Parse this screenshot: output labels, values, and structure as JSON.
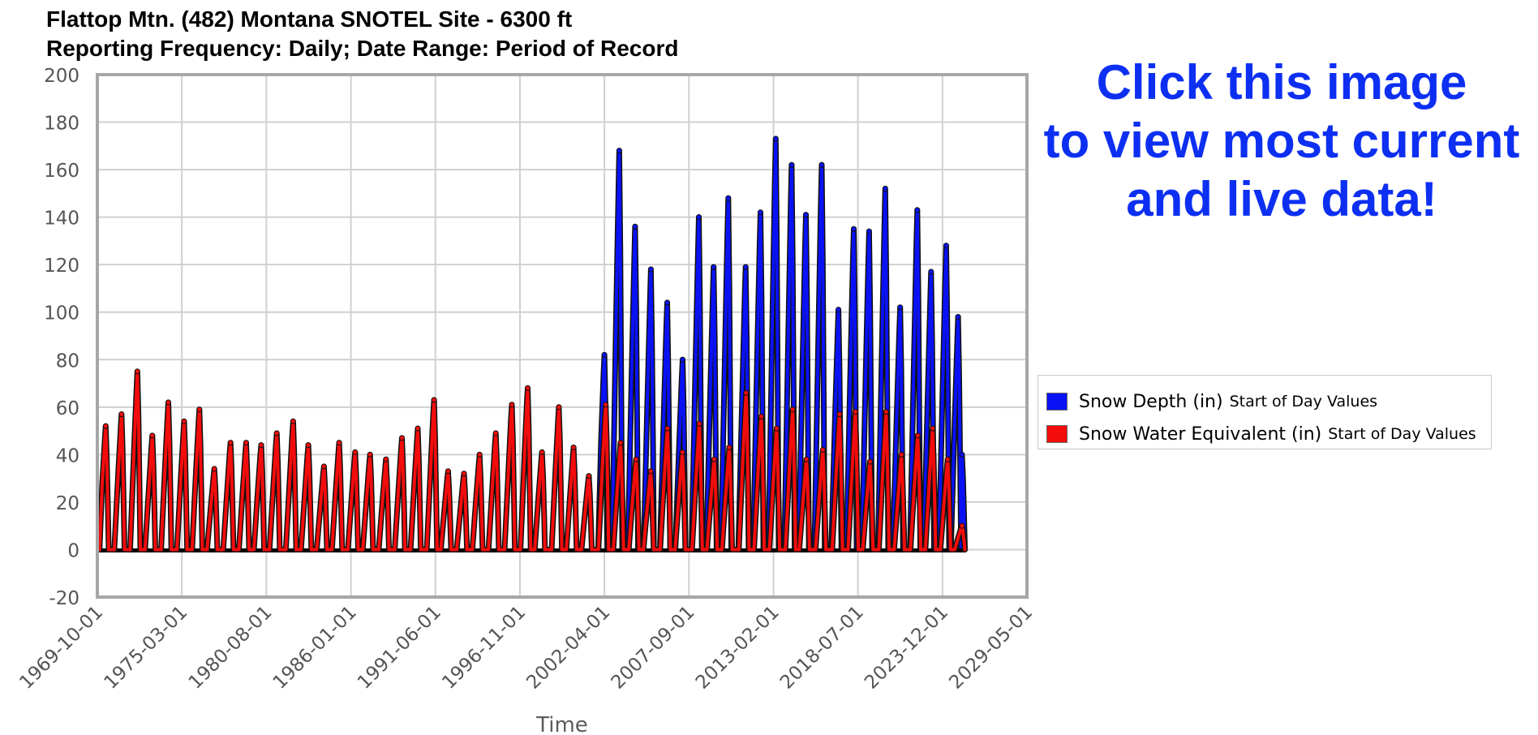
{
  "chart_data": {
    "type": "line",
    "title": [
      "Flattop Mtn. (482) Montana SNOTEL Site - 6300 ft",
      "Reporting Frequency: Daily; Date Range: Period of Record"
    ],
    "xlabel": "Time",
    "ylabel": "",
    "x_tick_labels": [
      "1969-10-01",
      "1975-03-01",
      "1980-08-01",
      "1986-01-01",
      "1991-06-01",
      "1996-11-01",
      "2002-04-01",
      "2007-09-01",
      "2013-02-01",
      "2018-07-01",
      "2023-12-01",
      "2029-05-01"
    ],
    "xlim": [
      "1969-10-01",
      "2029-05-01"
    ],
    "y_ticks": [
      200,
      180,
      160,
      140,
      120,
      100,
      80,
      60,
      40,
      20,
      0,
      -20
    ],
    "ylim": [
      -20,
      200
    ],
    "grid": true,
    "legend_position": "right",
    "series": [
      {
        "name": "Snow Depth (in)",
        "name_suffix": "Start of Day Values",
        "color": "#0a12f5",
        "annual_peaks": [
          [
            "2002-04-01",
            82
          ],
          [
            "2003-03-15",
            168
          ],
          [
            "2004-03-20",
            136
          ],
          [
            "2005-03-25",
            118
          ],
          [
            "2006-04-10",
            104
          ],
          [
            "2007-04-05",
            80
          ],
          [
            "2008-04-20",
            140
          ],
          [
            "2009-04-01",
            119
          ],
          [
            "2010-03-10",
            148
          ],
          [
            "2011-04-20",
            119
          ],
          [
            "2012-04-01",
            142
          ],
          [
            "2013-03-25",
            173
          ],
          [
            "2014-04-01",
            162
          ],
          [
            "2015-03-01",
            141
          ],
          [
            "2016-03-05",
            162
          ],
          [
            "2017-04-01",
            101
          ],
          [
            "2018-03-25",
            135
          ],
          [
            "2019-03-20",
            134
          ],
          [
            "2020-04-01",
            152
          ],
          [
            "2021-03-15",
            102
          ],
          [
            "2022-04-20",
            143
          ],
          [
            "2023-03-10",
            117
          ],
          [
            "2024-02-25",
            128
          ],
          [
            "2024-12-01",
            98
          ],
          [
            "2025-03-01",
            40
          ]
        ]
      },
      {
        "name": "Snow Water Equivalent (in)",
        "name_suffix": "Start of Day Values",
        "color": "#f20c0c",
        "annual_peaks": [
          [
            "1970-04-15",
            52
          ],
          [
            "1971-04-20",
            57
          ],
          [
            "1972-04-25",
            75
          ],
          [
            "1973-04-10",
            48
          ],
          [
            "1974-04-20",
            62
          ],
          [
            "1975-04-25",
            54
          ],
          [
            "1976-04-15",
            59
          ],
          [
            "1977-04-01",
            34
          ],
          [
            "1978-04-15",
            45
          ],
          [
            "1979-04-15",
            45
          ],
          [
            "1980-04-01",
            44
          ],
          [
            "1981-04-01",
            49
          ],
          [
            "1982-04-20",
            54
          ],
          [
            "1983-04-10",
            44
          ],
          [
            "1984-04-10",
            35
          ],
          [
            "1985-04-01",
            45
          ],
          [
            "1986-04-10",
            41
          ],
          [
            "1987-03-25",
            40
          ],
          [
            "1988-04-01",
            38
          ],
          [
            "1989-04-10",
            47
          ],
          [
            "1990-04-15",
            51
          ],
          [
            "1991-05-01",
            63
          ],
          [
            "1992-03-25",
            33
          ],
          [
            "1993-04-01",
            32
          ],
          [
            "1994-04-01",
            40
          ],
          [
            "1995-04-15",
            49
          ],
          [
            "1996-04-25",
            61
          ],
          [
            "1997-05-01",
            68
          ],
          [
            "1998-04-01",
            41
          ],
          [
            "1999-05-01",
            60
          ],
          [
            "2000-04-10",
            43
          ],
          [
            "2001-04-01",
            31
          ],
          [
            "2002-05-01",
            61
          ],
          [
            "2003-04-15",
            45
          ],
          [
            "2004-04-10",
            38
          ],
          [
            "2005-03-20",
            33
          ],
          [
            "2006-04-15",
            51
          ],
          [
            "2007-04-01",
            41
          ],
          [
            "2008-05-01",
            53
          ],
          [
            "2009-04-15",
            38
          ],
          [
            "2010-04-01",
            43
          ],
          [
            "2011-05-01",
            66
          ],
          [
            "2012-04-20",
            56
          ],
          [
            "2013-04-15",
            51
          ],
          [
            "2014-04-25",
            59
          ],
          [
            "2015-03-15",
            38
          ],
          [
            "2016-04-01",
            42
          ],
          [
            "2017-04-25",
            57
          ],
          [
            "2018-05-01",
            58
          ],
          [
            "2019-04-10",
            37
          ],
          [
            "2020-04-20",
            58
          ],
          [
            "2021-04-15",
            40
          ],
          [
            "2022-05-01",
            48
          ],
          [
            "2023-04-15",
            51
          ],
          [
            "2024-04-01",
            38
          ],
          [
            "2025-03-01",
            10
          ]
        ]
      }
    ]
  },
  "promo_text": [
    "Click this image",
    "to view most current",
    "and live data!"
  ]
}
